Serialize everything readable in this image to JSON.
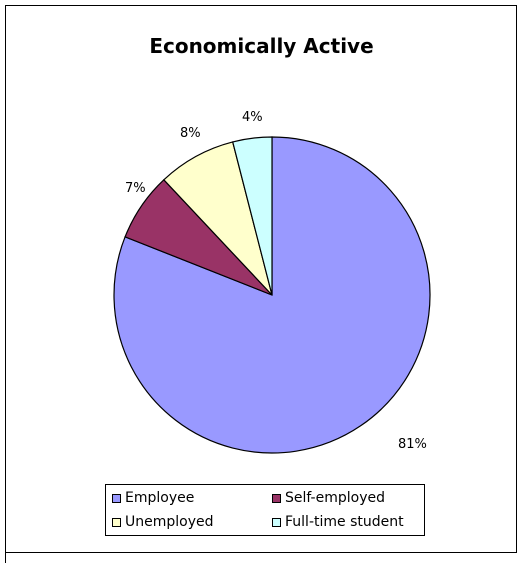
{
  "chart_data": {
    "type": "pie",
    "title": "Economically Active",
    "slices": [
      {
        "label": "Employee",
        "value": 81,
        "display": "81%",
        "color": "#9999FF"
      },
      {
        "label": "Self-employed",
        "value": 7,
        "display": "7%",
        "color": "#993366"
      },
      {
        "label": "Unemployed",
        "value": 8,
        "display": "8%",
        "color": "#FFFFCC"
      },
      {
        "label": "Full-time student",
        "value": 4,
        "display": "4%",
        "color": "#CCFFFF"
      }
    ],
    "start": "12 o'clock",
    "direction": "clockwise",
    "legend_position": "bottom"
  }
}
